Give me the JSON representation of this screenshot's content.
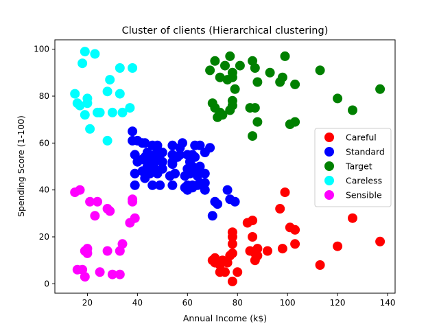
{
  "chart_data": {
    "type": "scatter",
    "title": "Cluster of clients (Hierarchical clustering)",
    "xlabel": "Annual Income (k$)",
    "ylabel": "Spending Score (1-100)",
    "xlim": [
      7,
      143
    ],
    "ylim": [
      -4,
      104
    ],
    "xticks": [
      20,
      40,
      60,
      80,
      100,
      120,
      140
    ],
    "yticks": [
      0,
      20,
      40,
      60,
      80,
      100
    ],
    "grid": false,
    "legend_position": "center-right",
    "series": [
      {
        "name": "Careful",
        "color": "#ff0000",
        "points": [
          [
            70,
            10
          ],
          [
            71,
            11
          ],
          [
            71,
            9
          ],
          [
            73,
            5
          ],
          [
            73,
            8
          ],
          [
            74,
            10
          ],
          [
            75,
            5
          ],
          [
            76,
            9
          ],
          [
            77,
            12
          ],
          [
            78,
            22
          ],
          [
            78,
            20
          ],
          [
            78,
            17
          ],
          [
            78,
            13
          ],
          [
            78,
            1
          ],
          [
            80,
            5
          ],
          [
            84,
            26
          ],
          [
            85,
            14
          ],
          [
            86,
            20
          ],
          [
            86,
            27
          ],
          [
            87,
            10
          ],
          [
            87,
            13
          ],
          [
            88,
            15
          ],
          [
            88,
            12
          ],
          [
            92,
            14
          ],
          [
            97,
            32
          ],
          [
            98,
            15
          ],
          [
            99,
            39
          ],
          [
            101,
            24
          ],
          [
            103,
            23
          ],
          [
            103,
            17
          ],
          [
            113,
            8
          ],
          [
            120,
            16
          ],
          [
            126,
            28
          ],
          [
            137,
            18
          ]
        ]
      },
      {
        "name": "Standard",
        "color": "#0000ff",
        "points": [
          [
            38,
            65
          ],
          [
            38,
            61
          ],
          [
            39,
            55
          ],
          [
            39,
            47
          ],
          [
            39,
            42
          ],
          [
            40,
            52
          ],
          [
            40,
            61
          ],
          [
            42,
            48
          ],
          [
            42,
            60
          ],
          [
            42,
            53
          ],
          [
            43,
            54
          ],
          [
            43,
            60
          ],
          [
            43,
            45
          ],
          [
            44,
            50
          ],
          [
            44,
            56
          ],
          [
            45,
            53
          ],
          [
            45,
            47
          ],
          [
            46,
            51
          ],
          [
            46,
            42
          ],
          [
            46,
            59
          ],
          [
            47,
            55
          ],
          [
            47,
            52
          ],
          [
            47,
            49
          ],
          [
            48,
            57
          ],
          [
            48,
            47
          ],
          [
            48,
            59
          ],
          [
            49,
            55
          ],
          [
            49,
            42
          ],
          [
            50,
            49
          ],
          [
            50,
            52
          ],
          [
            50,
            56
          ],
          [
            53,
            46
          ],
          [
            54,
            55
          ],
          [
            54,
            52
          ],
          [
            54,
            42
          ],
          [
            54,
            51
          ],
          [
            54,
            59
          ],
          [
            55,
            47
          ],
          [
            56,
            54
          ],
          [
            57,
            55
          ],
          [
            57,
            58
          ],
          [
            58,
            60
          ],
          [
            59,
            41
          ],
          [
            59,
            46
          ],
          [
            60,
            55
          ],
          [
            60,
            49
          ],
          [
            60,
            40
          ],
          [
            60,
            42
          ],
          [
            61,
            52
          ],
          [
            61,
            47
          ],
          [
            62,
            50
          ],
          [
            62,
            42
          ],
          [
            62,
            49
          ],
          [
            62,
            41
          ],
          [
            62,
            55
          ],
          [
            63,
            48
          ],
          [
            63,
            54
          ],
          [
            63,
            59
          ],
          [
            64,
            42
          ],
          [
            64,
            46
          ],
          [
            65,
            48
          ],
          [
            65,
            50
          ],
          [
            65,
            43
          ],
          [
            65,
            59
          ],
          [
            67,
            56
          ],
          [
            67,
            40
          ],
          [
            67,
            47
          ],
          [
            67,
            43
          ],
          [
            69,
            58
          ],
          [
            70,
            29
          ],
          [
            71,
            35
          ],
          [
            72,
            34
          ],
          [
            76,
            40
          ],
          [
            77,
            36
          ],
          [
            79,
            35
          ]
        ]
      },
      {
        "name": "Target",
        "color": "#008000",
        "points": [
          [
            69,
            91
          ],
          [
            70,
            77
          ],
          [
            71,
            95
          ],
          [
            71,
            75
          ],
          [
            72,
            71
          ],
          [
            73,
            88
          ],
          [
            73,
            73
          ],
          [
            74,
            72
          ],
          [
            75,
            93
          ],
          [
            76,
            87
          ],
          [
            77,
            97
          ],
          [
            77,
            74
          ],
          [
            78,
            90
          ],
          [
            78,
            76
          ],
          [
            78,
            88
          ],
          [
            78,
            78
          ],
          [
            79,
            83
          ],
          [
            81,
            93
          ],
          [
            85,
            75
          ],
          [
            86,
            95
          ],
          [
            86,
            63
          ],
          [
            87,
            92
          ],
          [
            87,
            75
          ],
          [
            88,
            86
          ],
          [
            88,
            69
          ],
          [
            93,
            90
          ],
          [
            97,
            86
          ],
          [
            98,
            88
          ],
          [
            99,
            97
          ],
          [
            101,
            68
          ],
          [
            103,
            85
          ],
          [
            103,
            69
          ],
          [
            113,
            91
          ],
          [
            120,
            79
          ],
          [
            126,
            74
          ],
          [
            137,
            83
          ]
        ]
      },
      {
        "name": "Careless",
        "color": "#00ffff",
        "points": [
          [
            15,
            81
          ],
          [
            16,
            77
          ],
          [
            17,
            76
          ],
          [
            18,
            94
          ],
          [
            19,
            99
          ],
          [
            19,
            72
          ],
          [
            20,
            77
          ],
          [
            20,
            79
          ],
          [
            21,
            66
          ],
          [
            23,
            98
          ],
          [
            24,
            73
          ],
          [
            25,
            73
          ],
          [
            28,
            82
          ],
          [
            28,
            61
          ],
          [
            29,
            87
          ],
          [
            30,
            73
          ],
          [
            33,
            92
          ],
          [
            33,
            81
          ],
          [
            34,
            73
          ],
          [
            37,
            75
          ],
          [
            38,
            92
          ]
        ]
      },
      {
        "name": "Sensible",
        "color": "#ff00ff",
        "points": [
          [
            15,
            39
          ],
          [
            16,
            6
          ],
          [
            17,
            40
          ],
          [
            18,
            6
          ],
          [
            19,
            3
          ],
          [
            19,
            14
          ],
          [
            20,
            15
          ],
          [
            20,
            13
          ],
          [
            21,
            35
          ],
          [
            23,
            29
          ],
          [
            24,
            35
          ],
          [
            25,
            5
          ],
          [
            28,
            14
          ],
          [
            28,
            32
          ],
          [
            29,
            31
          ],
          [
            30,
            4
          ],
          [
            33,
            4
          ],
          [
            33,
            14
          ],
          [
            34,
            17
          ],
          [
            37,
            26
          ],
          [
            38,
            35
          ],
          [
            38,
            36
          ],
          [
            39,
            28
          ]
        ]
      }
    ]
  }
}
